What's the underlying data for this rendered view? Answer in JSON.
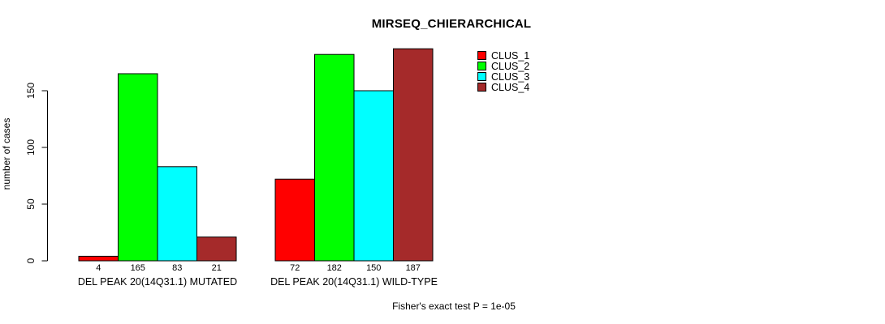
{
  "title": "MIRSEQ_CHIERARCHICAL",
  "footer": "Fisher's exact test P = 1e-05",
  "legend": {
    "entries": [
      {
        "label": "CLUS_1",
        "color": "#FF0000"
      },
      {
        "label": "CLUS_2",
        "color": "#00FF00"
      },
      {
        "label": "CLUS_3",
        "color": "#00FFFF"
      },
      {
        "label": "CLUS_4",
        "color": "#A52A2A"
      }
    ]
  },
  "chart_data": {
    "type": "bar",
    "title": "MIRSEQ_CHIERARCHICAL",
    "xlabel": "",
    "ylabel": "number of cases",
    "categories": [
      "DEL PEAK 20(14Q31.1) MUTATED",
      "DEL PEAK 20(14Q31.1) WILD-TYPE"
    ],
    "series": [
      {
        "name": "CLUS_1",
        "color": "#FF0000",
        "values": [
          4,
          72
        ]
      },
      {
        "name": "CLUS_2",
        "color": "#00FF00",
        "values": [
          165,
          182
        ]
      },
      {
        "name": "CLUS_3",
        "color": "#00FFFF",
        "values": [
          83,
          150
        ]
      },
      {
        "name": "CLUS_4",
        "color": "#A52A2A",
        "values": [
          21,
          187
        ]
      }
    ],
    "value_labels": [
      [
        4,
        165,
        83,
        21
      ],
      [
        72,
        182,
        150,
        187
      ]
    ],
    "yticks": [
      0,
      50,
      100,
      150
    ],
    "ylim": [
      0,
      190
    ],
    "grid": false,
    "legend_position": "top-right",
    "annotation": "Fisher's exact test P = 1e-05"
  }
}
